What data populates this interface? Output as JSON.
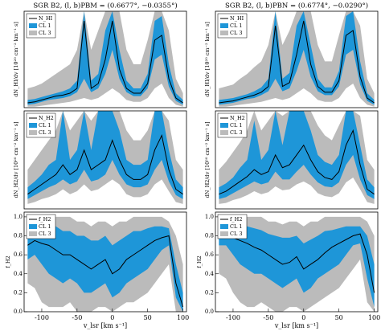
{
  "chart_data": [
    {
      "type": "line",
      "title": "SGR B2, (l, b)PBM = (0.6677°, −0.0355°)",
      "ylabel": "dN_HI/dv [10²⁰ cm⁻² km⁻¹ s]",
      "x": [
        -120,
        -110,
        -100,
        -90,
        -80,
        -70,
        -60,
        -50,
        -40,
        -30,
        -20,
        -10,
        0,
        10,
        20,
        30,
        40,
        50,
        60,
        70,
        80,
        90,
        100
      ],
      "xlim": [
        -125,
        105
      ],
      "ylim": [
        0,
        10
      ],
      "series": [
        {
          "name": "N_HI",
          "color": "#000000",
          "values": [
            0.5,
            0.6,
            0.8,
            1.0,
            1.2,
            1.3,
            1.5,
            2.0,
            9.0,
            2.0,
            2.5,
            5.0,
            9.0,
            4.0,
            2.0,
            1.5,
            1.5,
            2.5,
            7.0,
            7.5,
            3.0,
            1.0,
            0.5
          ]
        },
        {
          "name": "CL 1",
          "color": "#1e96d8",
          "lower": [
            0.3,
            0.4,
            0.6,
            0.8,
            0.9,
            1.0,
            1.2,
            1.6,
            3.0,
            1.6,
            2.0,
            3.5,
            6.0,
            3.0,
            1.6,
            1.2,
            1.2,
            2.0,
            5.0,
            5.5,
            2.2,
            0.7,
            0.3
          ],
          "upper": [
            0.8,
            0.9,
            1.1,
            1.3,
            1.5,
            1.7,
            2.0,
            2.8,
            10,
            2.8,
            3.5,
            8.0,
            10,
            6.0,
            2.8,
            2.0,
            2.0,
            3.5,
            9.0,
            9.5,
            4.5,
            1.5,
            0.8
          ]
        },
        {
          "name": "CL 3",
          "color": "#bbbbbb",
          "lower": [
            0.1,
            0.1,
            0.2,
            0.3,
            0.4,
            0.5,
            0.6,
            0.8,
            1.0,
            0.8,
            1.0,
            1.5,
            2.0,
            1.5,
            0.8,
            0.6,
            0.6,
            1.0,
            2.0,
            2.5,
            1.0,
            0.3,
            0.1
          ],
          "upper": [
            2.0,
            2.2,
            2.5,
            3.0,
            3.5,
            4.0,
            4.5,
            6.0,
            10,
            6.0,
            8.0,
            10,
            10,
            10,
            6.0,
            4.5,
            4.5,
            7.0,
            10,
            10,
            8.0,
            3.0,
            1.5
          ]
        }
      ]
    },
    {
      "type": "line",
      "title": "SGR B2, (l, b)PBN = (0.6774°, −0.0290°)",
      "ylabel": "dN_HI/dv [10²⁰ cm⁻² km⁻¹ s]",
      "x": [
        -120,
        -110,
        -100,
        -90,
        -80,
        -70,
        -60,
        -50,
        -40,
        -30,
        -20,
        -10,
        0,
        10,
        20,
        30,
        40,
        50,
        60,
        70,
        80,
        90,
        100
      ],
      "xlim": [
        -125,
        105
      ],
      "ylim": [
        0,
        10
      ],
      "series": [
        {
          "name": "N_HI",
          "color": "#000000",
          "values": [
            0.5,
            0.6,
            0.7,
            0.9,
            1.1,
            1.3,
            1.6,
            2.2,
            8.5,
            2.2,
            2.6,
            5.5,
            9.0,
            4.5,
            2.2,
            1.6,
            1.6,
            2.8,
            7.5,
            8.0,
            3.2,
            1.0,
            0.5
          ]
        },
        {
          "name": "CL 1",
          "color": "#1e96d8",
          "lower": [
            0.3,
            0.4,
            0.5,
            0.7,
            0.9,
            1.0,
            1.3,
            1.7,
            3.0,
            1.7,
            2.0,
            3.8,
            6.0,
            3.2,
            1.7,
            1.3,
            1.3,
            2.2,
            5.5,
            6.0,
            2.4,
            0.7,
            0.3
          ],
          "upper": [
            0.8,
            0.9,
            1.0,
            1.2,
            1.4,
            1.7,
            2.1,
            3.0,
            10,
            3.0,
            3.6,
            8.5,
            10,
            6.5,
            3.0,
            2.1,
            2.1,
            3.8,
            9.5,
            10,
            4.8,
            1.5,
            0.8
          ]
        },
        {
          "name": "CL 3",
          "color": "#bbbbbb",
          "lower": [
            0.1,
            0.1,
            0.2,
            0.3,
            0.4,
            0.5,
            0.6,
            0.8,
            1.0,
            0.8,
            1.0,
            1.5,
            2.0,
            1.5,
            0.8,
            0.6,
            0.6,
            1.0,
            2.0,
            2.5,
            1.0,
            0.3,
            0.1
          ],
          "upper": [
            2.0,
            2.2,
            2.4,
            3.0,
            3.5,
            4.2,
            4.8,
            6.5,
            10,
            6.5,
            8.0,
            10,
            10,
            10,
            6.5,
            4.8,
            4.8,
            7.5,
            10,
            10,
            8.5,
            3.0,
            1.5
          ]
        }
      ]
    },
    {
      "type": "line",
      "ylabel": "dN_H2/dv [10²⁰ cm⁻² km⁻¹ s]",
      "x": [
        -120,
        -110,
        -100,
        -90,
        -80,
        -70,
        -60,
        -50,
        -40,
        -30,
        -20,
        -10,
        0,
        10,
        20,
        30,
        40,
        50,
        60,
        70,
        80,
        90,
        100
      ],
      "xlim": [
        -125,
        105
      ],
      "ylim": [
        0,
        10
      ],
      "series": [
        {
          "name": "N_H2",
          "color": "#000000",
          "values": [
            1.5,
            2.0,
            2.5,
            3.0,
            3.5,
            4.5,
            3.5,
            4.0,
            6.0,
            4.0,
            4.5,
            5.0,
            7.0,
            5.0,
            3.5,
            3.0,
            3.0,
            3.5,
            6.0,
            7.5,
            4.0,
            2.0,
            1.5
          ]
        },
        {
          "name": "CL 1",
          "color": "#1e96d8",
          "lower": [
            1.0,
            1.4,
            1.8,
            2.2,
            2.5,
            3.0,
            2.5,
            2.8,
            4.0,
            2.8,
            3.0,
            3.5,
            5.0,
            3.5,
            2.5,
            2.2,
            2.2,
            2.5,
            4.0,
            5.0,
            2.8,
            1.4,
            1.0
          ],
          "upper": [
            2.2,
            2.8,
            3.5,
            4.5,
            5.0,
            10,
            5.0,
            6.0,
            10,
            6.0,
            10,
            10,
            10,
            8.0,
            5.0,
            4.5,
            4.5,
            5.0,
            10,
            10,
            6.0,
            3.0,
            2.2
          ]
        },
        {
          "name": "CL 3",
          "color": "#bbbbbb",
          "lower": [
            0.5,
            0.7,
            1.0,
            1.2,
            1.5,
            2.0,
            1.5,
            1.8,
            2.5,
            1.8,
            2.0,
            2.5,
            3.0,
            2.5,
            1.5,
            1.2,
            1.2,
            1.5,
            2.5,
            3.0,
            1.8,
            0.7,
            0.5
          ],
          "upper": [
            4.0,
            5.0,
            6.0,
            7.0,
            8.0,
            10,
            8.0,
            9.0,
            10,
            9.0,
            10,
            10,
            10,
            10,
            8.0,
            7.0,
            7.0,
            8.0,
            10,
            10,
            9.0,
            5.0,
            4.0
          ]
        }
      ]
    },
    {
      "type": "line",
      "ylabel": "dN_H2/dv [10²⁰ cm⁻² km⁻¹ s]",
      "x": [
        -120,
        -110,
        -100,
        -90,
        -80,
        -70,
        -60,
        -50,
        -40,
        -30,
        -20,
        -10,
        0,
        10,
        20,
        30,
        40,
        50,
        60,
        70,
        80,
        90,
        100
      ],
      "xlim": [
        -125,
        105
      ],
      "ylim": [
        0,
        10
      ],
      "series": [
        {
          "name": "N_H2",
          "color": "#000000",
          "values": [
            1.5,
            1.8,
            2.3,
            2.8,
            3.3,
            4.0,
            3.5,
            3.8,
            5.5,
            4.2,
            4.5,
            5.5,
            6.5,
            5.0,
            3.8,
            3.2,
            3.0,
            3.8,
            6.5,
            8.0,
            4.5,
            2.0,
            1.5
          ]
        },
        {
          "name": "CL 1",
          "color": "#1e96d8",
          "lower": [
            1.0,
            1.2,
            1.6,
            2.0,
            2.4,
            2.8,
            2.5,
            2.7,
            3.8,
            3.0,
            3.0,
            3.8,
            4.5,
            3.5,
            2.7,
            2.3,
            2.2,
            2.7,
            4.5,
            5.5,
            3.0,
            1.4,
            1.0
          ],
          "upper": [
            2.2,
            2.6,
            3.2,
            4.2,
            5.0,
            9.0,
            5.0,
            6.0,
            10,
            6.5,
            10,
            10,
            10,
            8.0,
            5.5,
            4.8,
            4.5,
            5.5,
            10,
            10,
            6.5,
            3.0,
            2.2
          ]
        },
        {
          "name": "CL 3",
          "color": "#bbbbbb",
          "lower": [
            0.5,
            0.6,
            0.9,
            1.1,
            1.4,
            1.8,
            1.5,
            1.7,
            2.3,
            1.9,
            2.0,
            2.5,
            2.8,
            2.4,
            1.6,
            1.3,
            1.2,
            1.6,
            2.7,
            3.2,
            2.0,
            0.7,
            0.5
          ],
          "upper": [
            4.0,
            4.8,
            5.8,
            6.8,
            8.0,
            10,
            8.0,
            9.0,
            10,
            9.5,
            10,
            10,
            10,
            10,
            8.5,
            7.5,
            7.0,
            8.5,
            10,
            10,
            9.5,
            5.0,
            4.0
          ]
        }
      ]
    },
    {
      "type": "line",
      "ylabel": "f_H2",
      "xlabel": "v_lsr [km s⁻¹]",
      "x": [
        -120,
        -110,
        -100,
        -90,
        -80,
        -70,
        -60,
        -50,
        -40,
        -30,
        -20,
        -10,
        0,
        10,
        20,
        30,
        40,
        50,
        60,
        70,
        80,
        90,
        100
      ],
      "xlim": [
        -125,
        105
      ],
      "ylim": [
        0,
        1.05
      ],
      "xticks": [
        -100,
        -50,
        0,
        50,
        100
      ],
      "yticks": [
        {
          "value": 0,
          "label": "0.0"
        },
        0.2,
        0.4,
        0.6,
        0.8,
        {
          "value": 1,
          "label": "1.0"
        }
      ],
      "series": [
        {
          "name": "f_H2",
          "color": "#000000",
          "values": [
            0.7,
            0.75,
            0.72,
            0.7,
            0.65,
            0.6,
            0.6,
            0.55,
            0.5,
            0.45,
            0.5,
            0.55,
            0.4,
            0.45,
            0.55,
            0.6,
            0.65,
            0.7,
            0.75,
            0.78,
            0.8,
            0.3,
            0.05
          ]
        },
        {
          "name": "CL 1",
          "color": "#1e96d8",
          "lower": [
            0.55,
            0.6,
            0.5,
            0.4,
            0.35,
            0.3,
            0.35,
            0.3,
            0.2,
            0.2,
            0.25,
            0.3,
            0.15,
            0.2,
            0.3,
            0.35,
            0.4,
            0.45,
            0.55,
            0.65,
            0.7,
            0.15,
            0.0
          ],
          "upper": [
            0.8,
            0.85,
            0.85,
            0.9,
            0.9,
            0.85,
            0.85,
            0.8,
            0.8,
            0.75,
            0.75,
            0.8,
            0.7,
            0.75,
            0.8,
            0.85,
            0.85,
            0.88,
            0.9,
            0.9,
            0.88,
            0.5,
            0.2
          ]
        },
        {
          "name": "CL 3",
          "color": "#bbbbbb",
          "lower": [
            0.3,
            0.25,
            0.1,
            0.05,
            0.05,
            0.05,
            0.1,
            0.0,
            0.0,
            0.0,
            0.05,
            0.05,
            0.0,
            0.05,
            0.1,
            0.1,
            0.15,
            0.2,
            0.3,
            0.4,
            0.5,
            0.0,
            0.0
          ],
          "upper": [
            0.9,
            0.95,
            0.95,
            1.0,
            1.0,
            1.0,
            1.0,
            0.95,
            0.95,
            0.9,
            0.95,
            0.95,
            0.9,
            0.95,
            0.95,
            1.0,
            1.0,
            1.0,
            1.0,
            1.0,
            0.95,
            0.8,
            0.5
          ]
        }
      ]
    },
    {
      "type": "line",
      "ylabel": "f_H2",
      "xlabel": "v_lsr [km s⁻¹]",
      "x": [
        -120,
        -110,
        -100,
        -90,
        -80,
        -70,
        -60,
        -50,
        -40,
        -30,
        -20,
        -10,
        0,
        10,
        20,
        30,
        40,
        50,
        60,
        70,
        80,
        90,
        100
      ],
      "xlim": [
        -125,
        105
      ],
      "ylim": [
        0,
        1.05
      ],
      "xticks": [
        -100,
        -50,
        0,
        50,
        100
      ],
      "yticks": [
        {
          "value": 0,
          "label": "0.0"
        },
        0.2,
        0.4,
        0.6,
        0.8,
        {
          "value": 1,
          "label": "1.0"
        }
      ],
      "series": [
        {
          "name": "f_H2",
          "color": "#000000",
          "values": [
            0.8,
            0.82,
            0.78,
            0.75,
            0.72,
            0.68,
            0.65,
            0.6,
            0.55,
            0.5,
            0.52,
            0.58,
            0.45,
            0.5,
            0.55,
            0.62,
            0.68,
            0.72,
            0.76,
            0.8,
            0.82,
            0.6,
            0.2
          ]
        },
        {
          "name": "CL 1",
          "color": "#1e96d8",
          "lower": [
            0.7,
            0.7,
            0.6,
            0.5,
            0.45,
            0.4,
            0.4,
            0.35,
            0.3,
            0.25,
            0.3,
            0.35,
            0.2,
            0.25,
            0.35,
            0.4,
            0.45,
            0.5,
            0.6,
            0.7,
            0.72,
            0.35,
            0.05
          ],
          "upper": [
            0.88,
            0.9,
            0.9,
            0.92,
            0.9,
            0.88,
            0.86,
            0.82,
            0.8,
            0.78,
            0.78,
            0.8,
            0.72,
            0.76,
            0.8,
            0.85,
            0.86,
            0.88,
            0.9,
            0.9,
            0.9,
            0.8,
            0.5
          ]
        },
        {
          "name": "CL 3",
          "color": "#bbbbbb",
          "lower": [
            0.4,
            0.35,
            0.2,
            0.1,
            0.05,
            0.05,
            0.1,
            0.05,
            0.0,
            0.0,
            0.05,
            0.05,
            0.0,
            0.05,
            0.1,
            0.15,
            0.2,
            0.25,
            0.35,
            0.45,
            0.55,
            0.1,
            0.0
          ],
          "upper": [
            0.95,
            1.0,
            1.0,
            1.0,
            1.0,
            1.0,
            1.0,
            0.95,
            0.95,
            0.92,
            0.95,
            0.95,
            0.9,
            0.95,
            0.95,
            1.0,
            1.0,
            1.0,
            1.0,
            1.0,
            1.0,
            0.95,
            0.8
          ]
        }
      ]
    }
  ]
}
